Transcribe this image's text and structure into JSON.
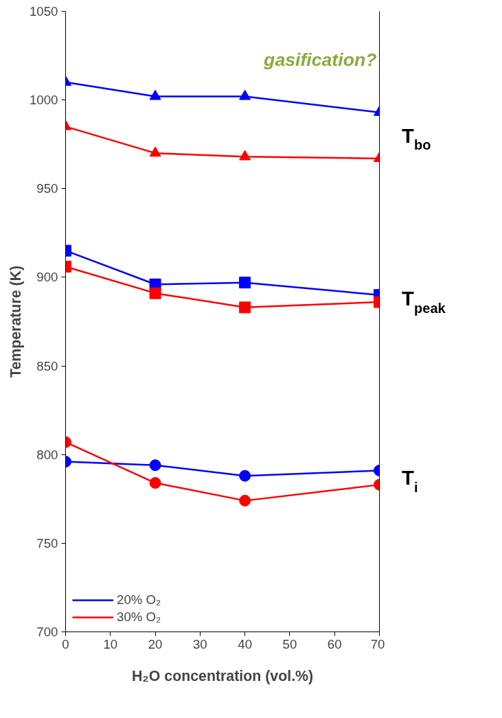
{
  "chart_data": {
    "type": "line",
    "xlabel": "H₂O concentration (vol.%)",
    "ylabel": "Temperature (K)",
    "x": [
      0,
      20,
      40,
      70
    ],
    "xlim": [
      0,
      70
    ],
    "xticks": [
      0,
      10,
      20,
      30,
      40,
      50,
      60,
      70
    ],
    "ylim": [
      700,
      1050
    ],
    "yticks": [
      700,
      750,
      800,
      850,
      900,
      950,
      1000,
      1050
    ],
    "grid": false,
    "legend": "bottom left",
    "line_style": "solid",
    "series": [
      {
        "name": "20% O₂",
        "color": "#0000ff",
        "marker": "triangle",
        "values": [
          1010,
          1002,
          1002,
          993
        ]
      },
      {
        "name": "30% O₂",
        "color": "#ff0000",
        "marker": "triangle",
        "values": [
          985,
          970,
          968,
          967
        ]
      },
      {
        "color": "#0000ff",
        "marker": "square",
        "values": [
          915,
          896,
          897,
          890
        ]
      },
      {
        "color": "#ff0000",
        "marker": "square",
        "values": [
          906,
          891,
          883,
          886
        ]
      },
      {
        "color": "#0000ff",
        "marker": "circle",
        "values": [
          796,
          794,
          788,
          791
        ]
      },
      {
        "color": "#ff0000",
        "marker": "circle",
        "values": [
          807,
          784,
          774,
          783
        ]
      }
    ],
    "annotations": [
      "gasification?",
      "T$_{bo}$",
      "T$_{peak}$",
      "T$_{i}$"
    ]
  }
}
